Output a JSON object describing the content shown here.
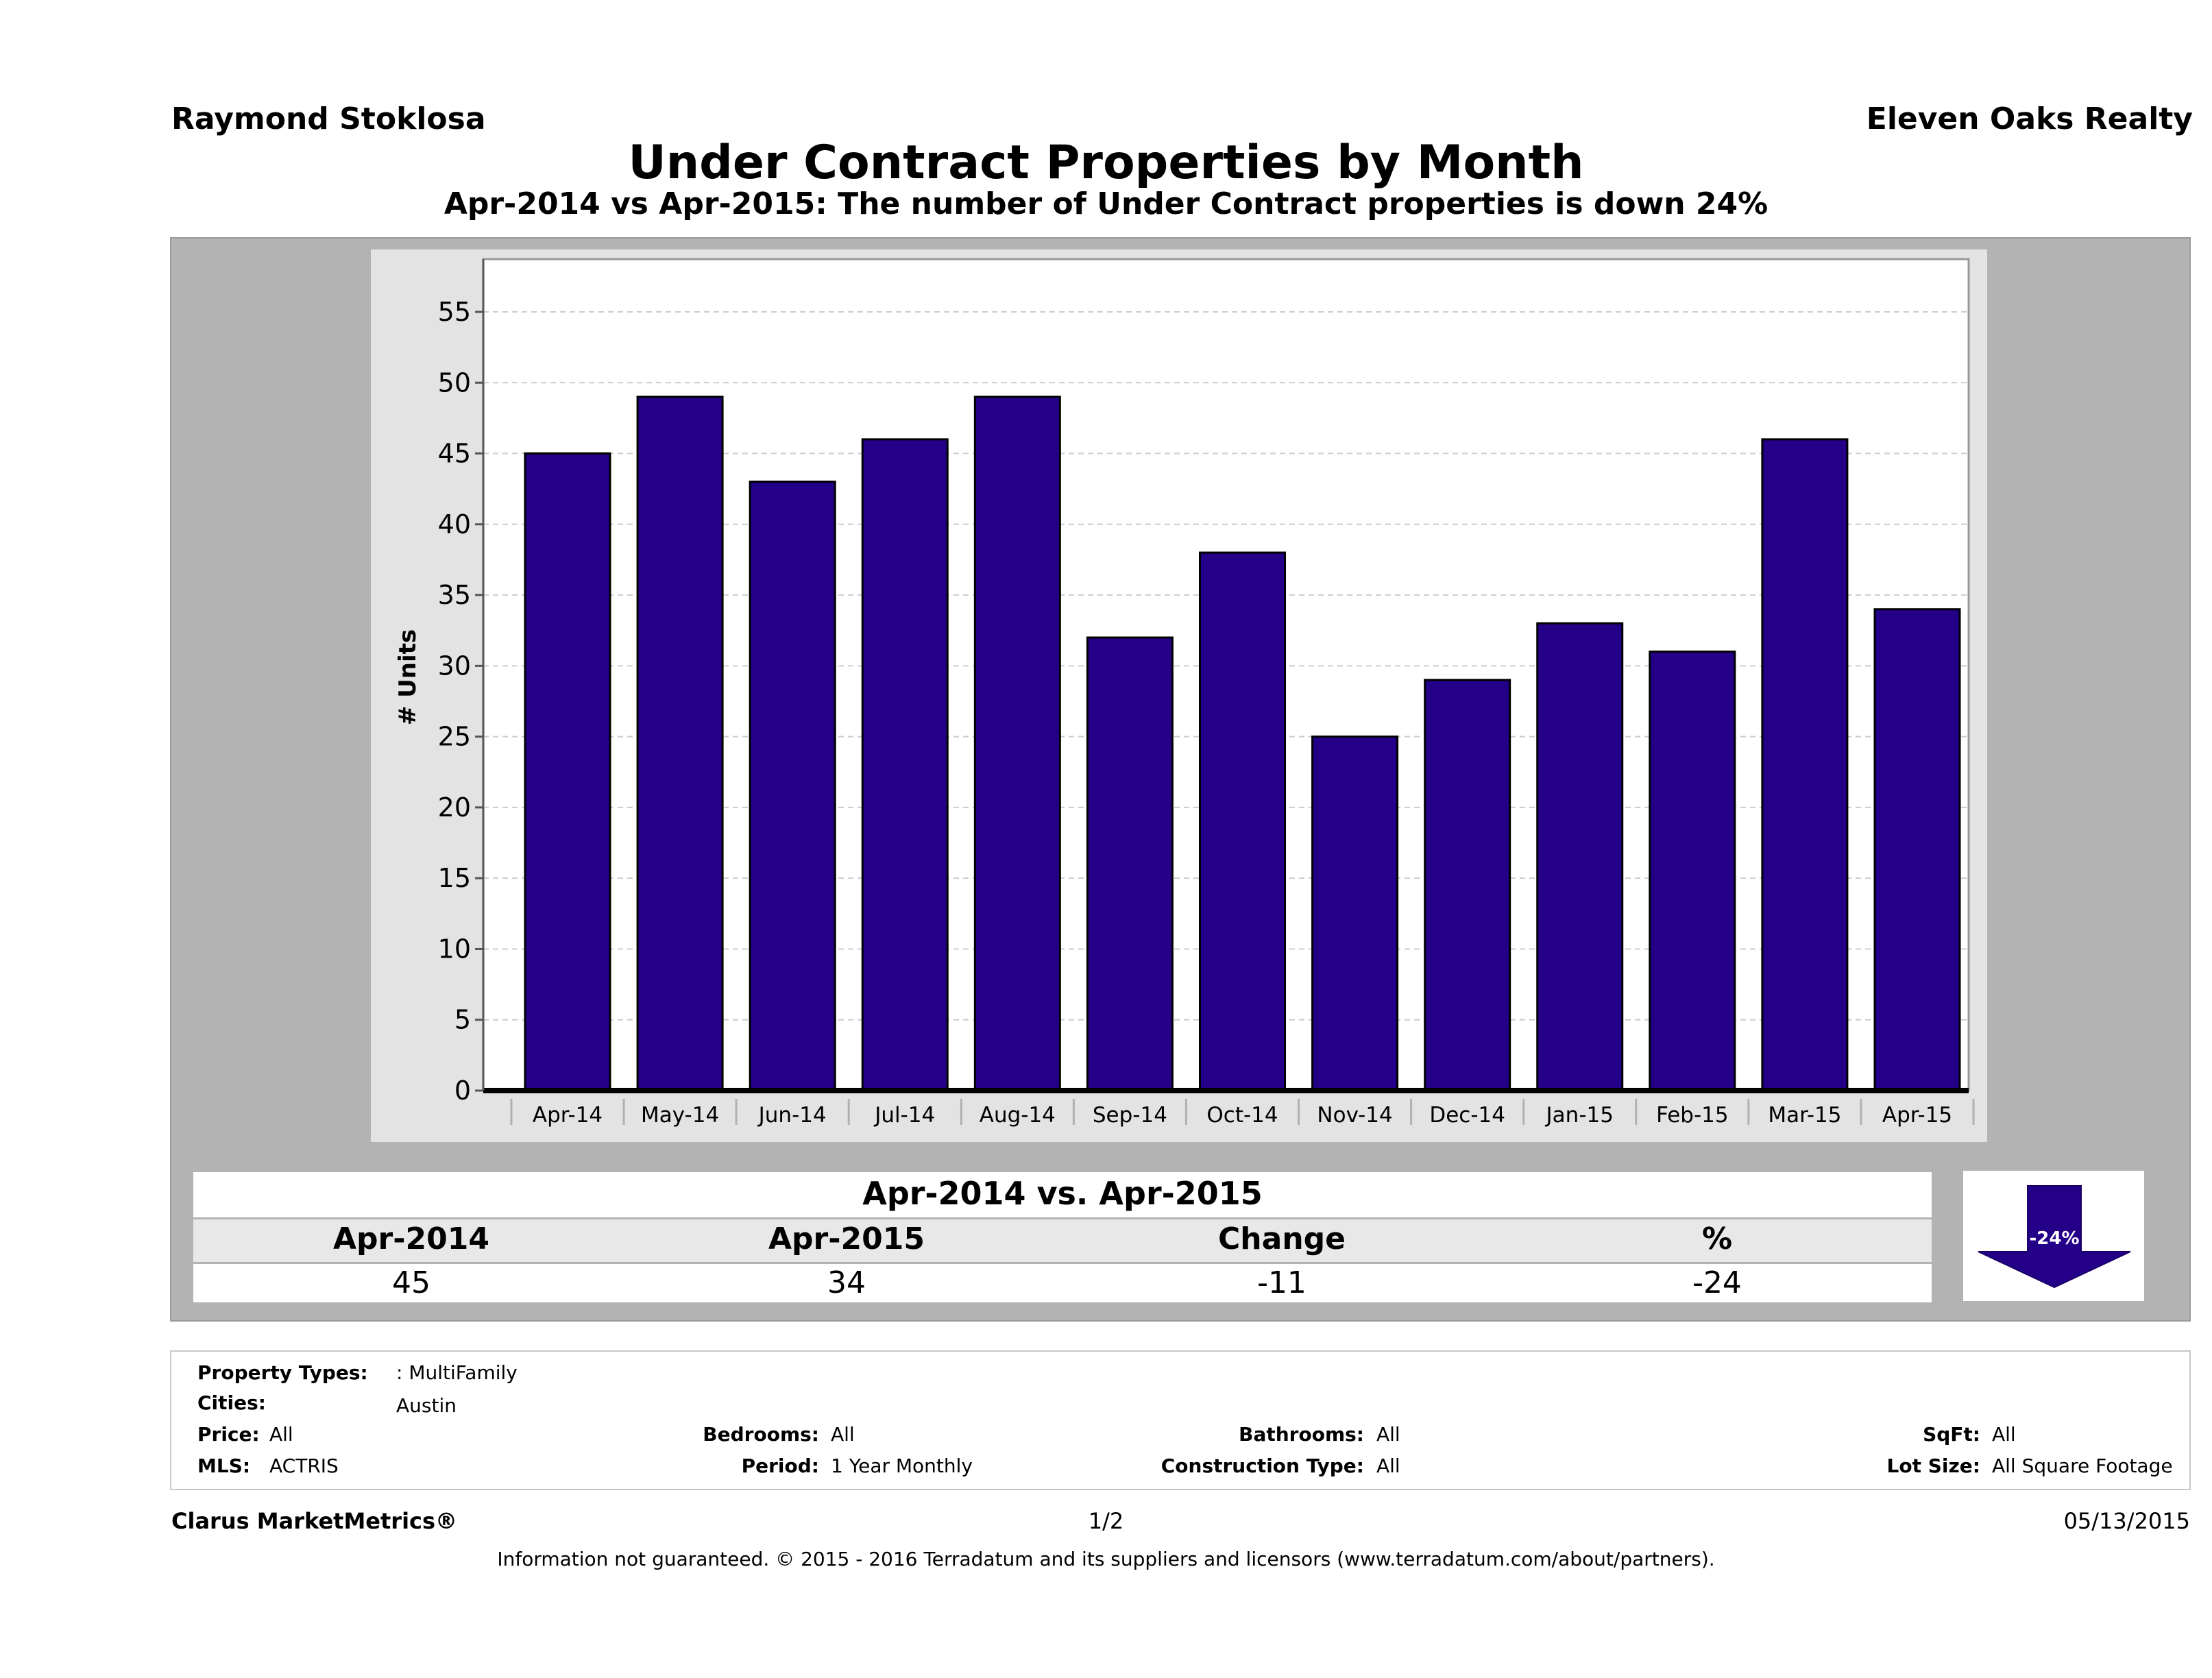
{
  "header": {
    "agent": "Raymond Stoklosa",
    "brokerage": "Eleven Oaks Realty",
    "title": "Under Contract Properties by Month",
    "subtitle": "Apr-2014 vs Apr-2015: The number of Under Contract  properties is down 24%"
  },
  "chart_data": {
    "type": "bar",
    "title": "Under Contract Properties by Month",
    "xlabel": "",
    "ylabel": "# Units",
    "ylim": [
      0,
      55
    ],
    "yticks": [
      0,
      5,
      10,
      15,
      20,
      25,
      30,
      35,
      40,
      45,
      50,
      55
    ],
    "grid": true,
    "bar_color": "#240088",
    "categories": [
      "Apr-14",
      "May-14",
      "Jun-14",
      "Jul-14",
      "Aug-14",
      "Sep-14",
      "Oct-14",
      "Nov-14",
      "Dec-14",
      "Jan-15",
      "Feb-15",
      "Mar-15",
      "Apr-15"
    ],
    "values": [
      45,
      49,
      43,
      46,
      49,
      32,
      38,
      25,
      29,
      33,
      31,
      46,
      34
    ]
  },
  "summary": {
    "title": "Apr-2014 vs. Apr-2015",
    "headers": [
      "Apr-2014",
      "Apr-2015",
      "Change",
      "%"
    ],
    "values": [
      "45",
      "34",
      "-11",
      "-24"
    ],
    "arrow_label": "-24%",
    "arrow_direction": "down"
  },
  "filters": {
    "property_types_label": "Property Types:",
    "property_types_value": ": MultiFamily",
    "cities_label": "Cities:",
    "cities_value": "Austin",
    "price_label": "Price:",
    "price_value": "All",
    "mls_label": "MLS:",
    "mls_value": "ACTRIS",
    "bedrooms_label": "Bedrooms:",
    "bedrooms_value": "All",
    "period_label": "Period:",
    "period_value": "1 Year Monthly",
    "bathrooms_label": "Bathrooms:",
    "bathrooms_value": "All",
    "construction_label": "Construction Type:",
    "construction_value": "All",
    "sqft_label": "SqFt:",
    "sqft_value": "All",
    "lot_size_label": "Lot Size:",
    "lot_size_value": "All Square Footage"
  },
  "footer": {
    "product": "Clarus MarketMetrics®",
    "page": "1/2",
    "date": "05/13/2015",
    "disclaimer": "Information not guaranteed. © 2015 - 2016 Terradatum and its suppliers and licensors (www.terradatum.com/about/partners)."
  }
}
